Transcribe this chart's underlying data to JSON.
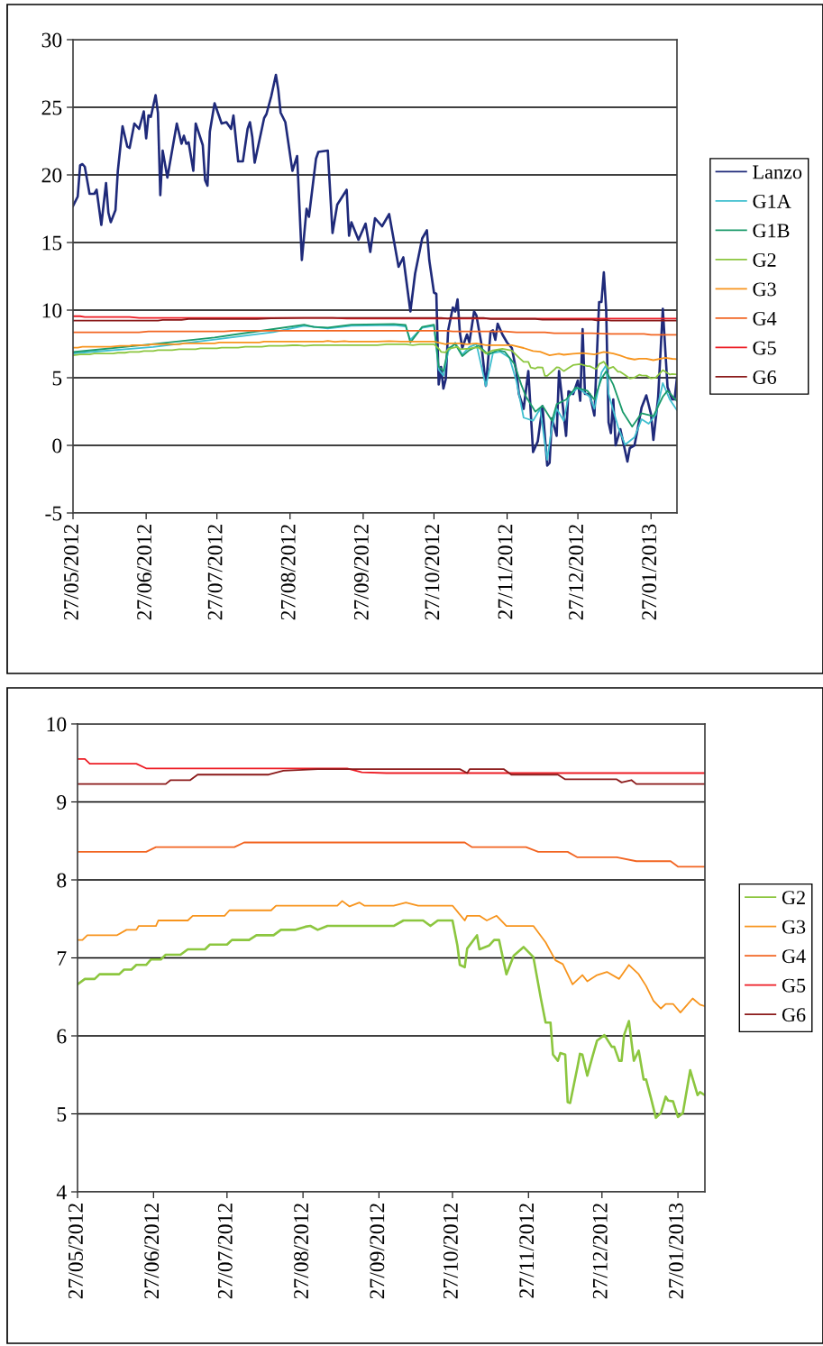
{
  "chart_data": [
    {
      "type": "line",
      "xlim": [
        "2012-05-27",
        "2013-02-07"
      ],
      "ylim": [
        -5,
        30
      ],
      "yticks": [
        -5,
        0,
        5,
        10,
        15,
        20,
        25,
        30
      ],
      "xticks": [
        {
          "value": "2012-05-27",
          "label": "27/05/2012"
        },
        {
          "value": "2012-06-27",
          "label": "27/06/2012"
        },
        {
          "value": "2012-07-27",
          "label": "27/07/2012"
        },
        {
          "value": "2012-08-27",
          "label": "27/08/2012"
        },
        {
          "value": "2012-09-27",
          "label": "27/09/2012"
        },
        {
          "value": "2012-10-27",
          "label": "27/10/2012"
        },
        {
          "value": "2012-11-27",
          "label": "27/11/2012"
        },
        {
          "value": "2012-12-27",
          "label": "27/12/2012"
        },
        {
          "value": "2013-01-27",
          "label": "27/01/2013"
        }
      ],
      "grid": "y",
      "legend": "right",
      "line_style": "solid",
      "marker": "none",
      "series": [
        {
          "name": "Lanzo",
          "color": "#1f2a7a",
          "x": [
            "2012-05-27",
            "2012-05-29",
            "2012-05-30",
            "2012-05-31",
            "2012-06-01",
            "2012-06-03",
            "2012-06-05",
            "2012-06-06",
            "2012-06-08",
            "2012-06-10",
            "2012-06-11",
            "2012-06-12",
            "2012-06-14",
            "2012-06-15",
            "2012-06-17",
            "2012-06-19",
            "2012-06-20",
            "2012-06-22",
            "2012-06-24",
            "2012-06-26",
            "2012-06-27",
            "2012-06-28",
            "2012-06-29",
            "2012-07-01",
            "2012-07-02",
            "2012-07-03",
            "2012-07-04",
            "2012-07-06",
            "2012-07-10",
            "2012-07-12",
            "2012-07-13",
            "2012-07-14",
            "2012-07-15",
            "2012-07-17",
            "2012-07-18",
            "2012-07-21",
            "2012-07-22",
            "2012-07-23",
            "2012-07-24",
            "2012-07-26",
            "2012-07-29",
            "2012-07-31",
            "2012-08-02",
            "2012-08-03",
            "2012-08-05",
            "2012-08-07",
            "2012-08-09",
            "2012-08-10",
            "2012-08-11",
            "2012-08-12",
            "2012-08-16",
            "2012-08-17",
            "2012-08-19",
            "2012-08-21",
            "2012-08-22",
            "2012-08-23",
            "2012-08-25",
            "2012-08-28",
            "2012-08-30",
            "2012-09-01",
            "2012-09-03",
            "2012-09-04",
            "2012-09-07",
            "2012-09-08",
            "2012-09-12",
            "2012-09-14",
            "2012-09-16",
            "2012-09-20",
            "2012-09-21",
            "2012-09-22",
            "2012-09-25",
            "2012-09-28",
            "2012-09-30",
            "2012-10-02",
            "2012-10-05",
            "2012-10-08",
            "2012-10-12",
            "2012-10-14",
            "2012-10-17",
            "2012-10-19",
            "2012-10-22",
            "2012-10-24",
            "2012-10-25",
            "2012-10-27",
            "2012-10-28",
            "2012-10-29",
            "2012-10-30",
            "2012-10-31",
            "2012-11-01",
            "2012-11-02",
            "2012-11-04",
            "2012-11-05",
            "2012-11-06",
            "2012-11-07",
            "2012-11-08",
            "2012-11-10",
            "2012-11-11",
            "2012-11-13",
            "2012-11-14",
            "2012-11-16",
            "2012-11-18",
            "2012-11-20",
            "2012-11-21",
            "2012-11-22",
            "2012-11-23",
            "2012-11-25",
            "2012-11-27",
            "2012-11-29",
            "2012-12-01",
            "2012-12-02",
            "2012-12-04",
            "2012-12-06",
            "2012-12-08",
            "2012-12-10",
            "2012-12-12",
            "2012-12-14",
            "2012-12-15",
            "2012-12-16",
            "2012-12-18",
            "2012-12-19",
            "2012-12-21",
            "2012-12-22",
            "2012-12-23",
            "2012-12-25",
            "2012-12-27",
            "2012-12-28",
            "2012-12-29",
            "2012-12-30",
            "2013-01-01",
            "2013-01-03",
            "2013-01-05",
            "2013-01-06",
            "2013-01-07",
            "2013-01-08",
            "2013-01-09",
            "2013-01-10",
            "2013-01-11",
            "2013-01-12",
            "2013-01-14",
            "2013-01-17",
            "2013-01-18",
            "2013-01-20",
            "2013-01-21",
            "2013-01-23",
            "2013-01-25",
            "2013-01-27",
            "2013-01-28",
            "2013-01-30",
            "2013-02-01",
            "2013-02-03",
            "2013-02-05",
            "2013-02-06",
            "2013-02-07"
          ],
          "values": [
            17.7,
            18.4,
            20.7,
            20.8,
            20.6,
            18.6,
            18.6,
            18.9,
            16.3,
            19.4,
            17.2,
            16.5,
            17.4,
            20.3,
            23.6,
            22.1,
            22.0,
            23.8,
            23.4,
            24.7,
            22.7,
            24.4,
            24.3,
            25.9,
            24.6,
            18.5,
            21.8,
            19.8,
            23.8,
            22.3,
            22.9,
            22.3,
            22.4,
            20.3,
            23.8,
            22.2,
            19.6,
            19.2,
            23.2,
            25.3,
            23.8,
            23.9,
            23.4,
            24.4,
            21.0,
            21.0,
            23.4,
            23.9,
            22.8,
            20.9,
            24.2,
            24.5,
            25.8,
            27.4,
            26.3,
            24.6,
            23.9,
            20.3,
            21.4,
            13.7,
            17.5,
            16.9,
            21.2,
            21.7,
            21.8,
            15.7,
            17.8,
            18.9,
            15.5,
            16.5,
            15.2,
            16.4,
            14.3,
            16.8,
            16.2,
            17.1,
            13.2,
            13.9,
            9.9,
            12.7,
            15.3,
            15.9,
            13.7,
            11.3,
            11.2,
            4.5,
            5.8,
            4.2,
            4.9,
            8.5,
            10.2,
            9.9,
            10.8,
            8.3,
            7.2,
            8.2,
            7.6,
            9.9,
            9.6,
            7.6,
            4.4,
            8.4,
            8.5,
            7.8,
            9.0,
            8.2,
            7.6,
            7.2,
            5.4,
            3.8,
            2.7,
            5.5,
            -0.5,
            0.3,
            2.9,
            -1.5,
            -1.3,
            2.0,
            0.7,
            5.5,
            2.3,
            0.7,
            4.0,
            3.8,
            4.8,
            3.3,
            8.6,
            3.8,
            3.8,
            2.2,
            10.6,
            10.6,
            12.8,
            10.0,
            1.7,
            0.9,
            3.4,
            0.0,
            1.2,
            -1.2,
            -0.2,
            0.0,
            0.9,
            2.8,
            3.7,
            2.3,
            0.4,
            3.5,
            10.1,
            4.3,
            3.4,
            3.4,
            5.0
          ]
        },
        {
          "name": "G1A",
          "color": "#3fbfcf",
          "x": [
            "2012-05-27",
            "2012-06-30",
            "2012-07-26",
            "2012-08-20",
            "2012-09-02",
            "2012-09-12",
            "2012-09-22",
            "2012-10-10",
            "2012-10-15",
            "2012-10-17",
            "2012-10-22",
            "2012-10-27",
            "2012-10-29",
            "2012-10-31",
            "2012-11-02",
            "2012-11-05",
            "2012-11-08",
            "2012-11-11",
            "2012-11-14",
            "2012-11-18",
            "2012-11-21",
            "2012-11-24",
            "2012-11-28",
            "2012-12-01",
            "2012-12-04",
            "2012-12-08",
            "2012-12-11",
            "2012-12-14",
            "2012-12-16",
            "2012-12-18",
            "2012-12-21",
            "2012-12-23",
            "2012-12-27",
            "2013-01-01",
            "2013-01-03",
            "2013-01-06",
            "2013-01-08",
            "2013-01-09",
            "2013-01-13",
            "2013-01-16",
            "2013-01-20",
            "2013-01-23",
            "2013-01-26",
            "2013-01-29",
            "2013-02-01",
            "2013-02-04",
            "2013-02-07"
          ],
          "values": [
            6.8,
            7.27,
            7.82,
            8.38,
            8.85,
            8.65,
            8.85,
            8.9,
            8.8,
            7.8,
            8.7,
            8.85,
            5.6,
            5.16,
            6.93,
            7.6,
            6.71,
            7.27,
            7.49,
            4.38,
            6.82,
            6.93,
            6.49,
            4.71,
            2.05,
            1.82,
            2.71,
            -1.07,
            1.38,
            2.71,
            1.82,
            3.6,
            4.27,
            3.6,
            2.71,
            5.38,
            5.93,
            3.82,
            1.38,
            0.05,
            0.6,
            1.93,
            1.6,
            2.27,
            4.6,
            3.38,
            2.6
          ]
        },
        {
          "name": "G1B",
          "color": "#1a9a6a",
          "x": [
            "2012-05-27",
            "2012-06-30",
            "2012-07-26",
            "2012-08-20",
            "2012-09-02",
            "2012-09-06",
            "2012-09-12",
            "2012-09-22",
            "2012-10-10",
            "2012-10-15",
            "2012-10-17",
            "2012-10-22",
            "2012-10-27",
            "2012-10-29",
            "2012-10-31",
            "2012-11-02",
            "2012-11-05",
            "2012-11-08",
            "2012-11-11",
            "2012-11-15",
            "2012-11-19",
            "2012-11-23",
            "2012-11-26",
            "2012-11-30",
            "2012-12-03",
            "2012-12-05",
            "2012-12-09",
            "2012-12-12",
            "2012-12-16",
            "2012-12-18",
            "2012-12-22",
            "2012-12-26",
            "2012-12-31",
            "2013-01-03",
            "2013-01-06",
            "2013-01-08",
            "2013-01-11",
            "2013-01-15",
            "2013-01-19",
            "2013-01-23",
            "2013-01-28",
            "2013-02-01",
            "2013-02-03",
            "2013-02-07"
          ],
          "values": [
            6.9,
            7.49,
            7.98,
            8.6,
            8.93,
            8.76,
            8.71,
            8.93,
            8.98,
            8.9,
            7.6,
            8.76,
            8.93,
            5.82,
            5.49,
            7.16,
            7.49,
            6.6,
            7.04,
            7.38,
            6.71,
            7.04,
            6.93,
            6.04,
            4.49,
            3.6,
            2.49,
            2.93,
            1.82,
            3.04,
            3.38,
            4.27,
            4.04,
            3.38,
            4.93,
            5.49,
            4.49,
            2.49,
            1.38,
            2.38,
            2.16,
            3.6,
            4.04,
            3.27
          ]
        },
        {
          "name": "G2",
          "color": "#8cc63f",
          "x": [
            "2012-05-27",
            "2012-05-30",
            "2012-06-03",
            "2012-06-05",
            "2012-06-13",
            "2012-06-15",
            "2012-06-18",
            "2012-06-20",
            "2012-06-24",
            "2012-06-26",
            "2012-06-30",
            "2012-07-02",
            "2012-07-08",
            "2012-07-11",
            "2012-07-18",
            "2012-07-20",
            "2012-07-27",
            "2012-07-29",
            "2012-08-05",
            "2012-08-08",
            "2012-08-15",
            "2012-08-18",
            "2012-08-24",
            "2012-08-28",
            "2012-08-30",
            "2012-09-02",
            "2012-09-06",
            "2012-10-03",
            "2012-10-07",
            "2012-10-15",
            "2012-10-18",
            "2012-10-21",
            "2012-10-27",
            "2012-10-29",
            "2012-10-30",
            "2012-11-01",
            "2012-11-02",
            "2012-11-06",
            "2012-11-07",
            "2012-11-11",
            "2012-11-13",
            "2012-11-15",
            "2012-11-18",
            "2012-11-21",
            "2012-11-25",
            "2012-11-29",
            "2012-12-02",
            "2012-12-04",
            "2012-12-06",
            "2012-12-07",
            "2012-12-09",
            "2012-12-10",
            "2012-12-12",
            "2012-12-13",
            "2012-12-14",
            "2012-12-17",
            "2012-12-18",
            "2012-12-19",
            "2012-12-21",
            "2012-12-23",
            "2012-12-25",
            "2012-12-28",
            "2012-12-31",
            "2013-01-01",
            "2013-01-03",
            "2013-01-04",
            "2013-01-05",
            "2013-01-07",
            "2013-01-09",
            "2013-01-11",
            "2013-01-13",
            "2013-01-14",
            "2013-01-16",
            "2013-01-18",
            "2013-01-20",
            "2013-01-22",
            "2013-01-23",
            "2013-01-25",
            "2013-01-27",
            "2013-01-29",
            "2013-02-01",
            "2013-02-04",
            "2013-02-05",
            "2013-02-07"
          ],
          "values": [
            6.66,
            6.73,
            6.73,
            6.79,
            6.79,
            6.85,
            6.85,
            6.91,
            6.91,
            6.98,
            6.98,
            7.04,
            7.04,
            7.11,
            7.11,
            7.17,
            7.17,
            7.23,
            7.23,
            7.29,
            7.29,
            7.36,
            7.36,
            7.4,
            7.41,
            7.36,
            7.41,
            7.41,
            7.48,
            7.48,
            7.41,
            7.48,
            7.48,
            7.16,
            6.91,
            6.88,
            7.12,
            7.29,
            7.11,
            7.16,
            7.23,
            7.23,
            6.79,
            7.03,
            7.14,
            7.01,
            6.49,
            6.17,
            6.17,
            5.76,
            5.68,
            5.78,
            5.76,
            5.15,
            5.14,
            5.6,
            5.77,
            5.76,
            5.49,
            5.72,
            5.94,
            6.01,
            5.86,
            5.86,
            5.68,
            5.68,
            6.01,
            6.19,
            5.68,
            5.81,
            5.44,
            5.44,
            5.2,
            4.95,
            5.01,
            5.22,
            5.17,
            5.16,
            4.96,
            5.01,
            5.56,
            5.24,
            5.28,
            5.24
          ]
        },
        {
          "name": "G3",
          "color": "#f7941d",
          "x": [
            "2012-05-27",
            "2012-05-29",
            "2012-05-31",
            "2012-06-12",
            "2012-06-16",
            "2012-06-20",
            "2012-06-21",
            "2012-06-28",
            "2012-06-29",
            "2012-07-11",
            "2012-07-13",
            "2012-07-26",
            "2012-07-28",
            "2012-08-14",
            "2012-08-16",
            "2012-09-10",
            "2012-09-12",
            "2012-09-15",
            "2012-09-19",
            "2012-09-21",
            "2012-10-03",
            "2012-10-08",
            "2012-10-13",
            "2012-10-27",
            "2012-11-01",
            "2012-11-02",
            "2012-11-07",
            "2012-11-10",
            "2012-11-14",
            "2012-11-18",
            "2012-11-29",
            "2012-12-04",
            "2012-12-08",
            "2012-12-11",
            "2012-12-15",
            "2012-12-19",
            "2012-12-21",
            "2012-12-25",
            "2012-12-29",
            "2013-01-03",
            "2013-01-07",
            "2013-01-11",
            "2013-01-14",
            "2013-01-17",
            "2013-01-20",
            "2013-01-22",
            "2013-01-25",
            "2013-01-28",
            "2013-02-02",
            "2013-02-05",
            "2013-02-07"
          ],
          "values": [
            7.23,
            7.23,
            7.29,
            7.29,
            7.36,
            7.36,
            7.41,
            7.41,
            7.48,
            7.48,
            7.54,
            7.54,
            7.61,
            7.61,
            7.67,
            7.67,
            7.73,
            7.66,
            7.71,
            7.67,
            7.67,
            7.71,
            7.67,
            7.67,
            7.48,
            7.54,
            7.54,
            7.48,
            7.54,
            7.41,
            7.41,
            7.2,
            6.97,
            6.92,
            6.66,
            6.78,
            6.7,
            6.78,
            6.82,
            6.73,
            6.91,
            6.79,
            6.64,
            6.45,
            6.35,
            6.41,
            6.41,
            6.3,
            6.48,
            6.4,
            6.38
          ]
        },
        {
          "name": "G4",
          "color": "#f26522",
          "x": [
            "2012-05-27",
            "2012-06-24",
            "2012-06-28",
            "2012-07-30",
            "2012-08-03",
            "2012-11-01",
            "2012-11-04",
            "2012-11-26",
            "2012-12-01",
            "2012-12-13",
            "2012-12-17",
            "2013-01-02",
            "2013-01-10",
            "2013-01-24",
            "2013-01-27",
            "2013-02-07"
          ],
          "values": [
            8.36,
            8.36,
            8.42,
            8.42,
            8.48,
            8.48,
            8.42,
            8.42,
            8.36,
            8.36,
            8.29,
            8.29,
            8.24,
            8.24,
            8.17,
            8.17
          ]
        },
        {
          "name": "G5",
          "color": "#ed1c24",
          "x": [
            "2012-05-27",
            "2012-05-30",
            "2012-06-01",
            "2012-06-20",
            "2012-06-24",
            "2012-09-14",
            "2012-09-20",
            "2012-09-30",
            "2013-02-07"
          ],
          "values": [
            9.55,
            9.55,
            9.49,
            9.49,
            9.43,
            9.43,
            9.38,
            9.37,
            9.37
          ]
        },
        {
          "name": "G6",
          "color": "#8b1a1a",
          "x": [
            "2012-05-27",
            "2012-07-02",
            "2012-07-04",
            "2012-07-12",
            "2012-07-15",
            "2012-08-13",
            "2012-08-19",
            "2012-09-02",
            "2012-10-30",
            "2012-11-02",
            "2012-11-03",
            "2012-11-17",
            "2012-11-20",
            "2012-12-09",
            "2012-12-12",
            "2013-01-02",
            "2013-01-04",
            "2013-01-08",
            "2013-01-10",
            "2013-02-07"
          ],
          "values": [
            9.23,
            9.23,
            9.28,
            9.28,
            9.35,
            9.35,
            9.4,
            9.42,
            9.42,
            9.37,
            9.42,
            9.42,
            9.35,
            9.35,
            9.29,
            9.29,
            9.25,
            9.28,
            9.23,
            9.23
          ]
        }
      ]
    },
    {
      "type": "line",
      "xlim": [
        "2012-05-27",
        "2013-02-07"
      ],
      "ylim": [
        4,
        10
      ],
      "yticks": [
        4,
        5,
        6,
        7,
        8,
        9,
        10
      ],
      "xticks": [
        {
          "value": "2012-05-27",
          "label": "27/05/2012"
        },
        {
          "value": "2012-06-27",
          "label": "27/06/2012"
        },
        {
          "value": "2012-07-27",
          "label": "27/07/2012"
        },
        {
          "value": "2012-08-27",
          "label": "27/08/2012"
        },
        {
          "value": "2012-09-27",
          "label": "27/09/2012"
        },
        {
          "value": "2012-10-27",
          "label": "27/10/2012"
        },
        {
          "value": "2012-11-27",
          "label": "27/11/2012"
        },
        {
          "value": "2012-12-27",
          "label": "27/12/2012"
        },
        {
          "value": "2013-01-27",
          "label": "27/01/2013"
        }
      ],
      "grid": "y",
      "legend": "right",
      "line_style": "solid",
      "marker": "none",
      "series": [
        {
          "name": "G2",
          "color": "#8cc63f",
          "x": [
            "2012-05-27",
            "2012-05-30",
            "2012-06-03",
            "2012-06-05",
            "2012-06-13",
            "2012-06-15",
            "2012-06-18",
            "2012-06-20",
            "2012-06-24",
            "2012-06-26",
            "2012-06-30",
            "2012-07-02",
            "2012-07-08",
            "2012-07-11",
            "2012-07-18",
            "2012-07-20",
            "2012-07-27",
            "2012-07-29",
            "2012-08-05",
            "2012-08-08",
            "2012-08-15",
            "2012-08-18",
            "2012-08-24",
            "2012-08-28",
            "2012-08-30",
            "2012-09-02",
            "2012-09-06",
            "2012-10-03",
            "2012-10-07",
            "2012-10-15",
            "2012-10-18",
            "2012-10-21",
            "2012-10-27",
            "2012-10-29",
            "2012-10-30",
            "2012-11-01",
            "2012-11-02",
            "2012-11-06",
            "2012-11-07",
            "2012-11-11",
            "2012-11-13",
            "2012-11-15",
            "2012-11-18",
            "2012-11-21",
            "2012-11-25",
            "2012-11-29",
            "2012-12-02",
            "2012-12-04",
            "2012-12-06",
            "2012-12-07",
            "2012-12-09",
            "2012-12-10",
            "2012-12-12",
            "2012-12-13",
            "2012-12-14",
            "2012-12-17",
            "2012-12-18",
            "2012-12-19",
            "2012-12-21",
            "2012-12-23",
            "2012-12-25",
            "2012-12-28",
            "2012-12-31",
            "2013-01-01",
            "2013-01-03",
            "2013-01-04",
            "2013-01-05",
            "2013-01-07",
            "2013-01-09",
            "2013-01-11",
            "2013-01-13",
            "2013-01-14",
            "2013-01-16",
            "2013-01-18",
            "2013-01-20",
            "2013-01-22",
            "2013-01-23",
            "2013-01-25",
            "2013-01-27",
            "2013-01-29",
            "2013-02-01",
            "2013-02-04",
            "2013-02-05",
            "2013-02-07"
          ],
          "values": [
            6.66,
            6.73,
            6.73,
            6.79,
            6.79,
            6.85,
            6.85,
            6.91,
            6.91,
            6.98,
            6.98,
            7.04,
            7.04,
            7.11,
            7.11,
            7.17,
            7.17,
            7.23,
            7.23,
            7.29,
            7.29,
            7.36,
            7.36,
            7.4,
            7.41,
            7.36,
            7.41,
            7.41,
            7.48,
            7.48,
            7.41,
            7.48,
            7.48,
            7.16,
            6.91,
            6.88,
            7.12,
            7.29,
            7.11,
            7.16,
            7.23,
            7.23,
            6.79,
            7.03,
            7.14,
            7.01,
            6.49,
            6.17,
            6.17,
            5.76,
            5.68,
            5.78,
            5.76,
            5.15,
            5.14,
            5.6,
            5.77,
            5.76,
            5.49,
            5.72,
            5.94,
            6.01,
            5.86,
            5.86,
            5.68,
            5.68,
            6.01,
            6.19,
            5.68,
            5.81,
            5.44,
            5.44,
            5.2,
            4.95,
            5.01,
            5.22,
            5.17,
            5.16,
            4.96,
            5.01,
            5.56,
            5.24,
            5.28,
            5.24
          ]
        },
        {
          "name": "G3",
          "color": "#f7941d",
          "x": [
            "2012-05-27",
            "2012-05-29",
            "2012-05-31",
            "2012-06-12",
            "2012-06-16",
            "2012-06-20",
            "2012-06-21",
            "2012-06-28",
            "2012-06-29",
            "2012-07-11",
            "2012-07-13",
            "2012-07-26",
            "2012-07-28",
            "2012-08-14",
            "2012-08-16",
            "2012-09-10",
            "2012-09-12",
            "2012-09-15",
            "2012-09-19",
            "2012-09-21",
            "2012-10-03",
            "2012-10-08",
            "2012-10-13",
            "2012-10-27",
            "2012-11-01",
            "2012-11-02",
            "2012-11-07",
            "2012-11-10",
            "2012-11-14",
            "2012-11-18",
            "2012-11-29",
            "2012-12-04",
            "2012-12-08",
            "2012-12-11",
            "2012-12-15",
            "2012-12-19",
            "2012-12-21",
            "2012-12-25",
            "2012-12-29",
            "2013-01-03",
            "2013-01-07",
            "2013-01-11",
            "2013-01-14",
            "2013-01-17",
            "2013-01-20",
            "2013-01-22",
            "2013-01-25",
            "2013-01-28",
            "2013-02-02",
            "2013-02-05",
            "2013-02-07"
          ],
          "values": [
            7.23,
            7.23,
            7.29,
            7.29,
            7.36,
            7.36,
            7.41,
            7.41,
            7.48,
            7.48,
            7.54,
            7.54,
            7.61,
            7.61,
            7.67,
            7.67,
            7.73,
            7.66,
            7.71,
            7.67,
            7.67,
            7.71,
            7.67,
            7.67,
            7.48,
            7.54,
            7.54,
            7.48,
            7.54,
            7.41,
            7.41,
            7.2,
            6.97,
            6.92,
            6.66,
            6.78,
            6.7,
            6.78,
            6.82,
            6.73,
            6.91,
            6.79,
            6.64,
            6.45,
            6.35,
            6.41,
            6.41,
            6.3,
            6.48,
            6.4,
            6.38
          ]
        },
        {
          "name": "G4",
          "color": "#f26522",
          "x": [
            "2012-05-27",
            "2012-06-24",
            "2012-06-28",
            "2012-07-30",
            "2012-08-03",
            "2012-11-01",
            "2012-11-04",
            "2012-11-26",
            "2012-12-01",
            "2012-12-13",
            "2012-12-17",
            "2013-01-02",
            "2013-01-10",
            "2013-01-24",
            "2013-01-27",
            "2013-02-07"
          ],
          "values": [
            8.36,
            8.36,
            8.42,
            8.42,
            8.48,
            8.48,
            8.42,
            8.42,
            8.36,
            8.36,
            8.29,
            8.29,
            8.24,
            8.24,
            8.17,
            8.17
          ]
        },
        {
          "name": "G5",
          "color": "#ed1c24",
          "x": [
            "2012-05-27",
            "2012-05-30",
            "2012-06-01",
            "2012-06-20",
            "2012-06-24",
            "2012-09-14",
            "2012-09-20",
            "2012-09-30",
            "2013-02-07"
          ],
          "values": [
            9.55,
            9.55,
            9.49,
            9.49,
            9.43,
            9.43,
            9.38,
            9.37,
            9.37
          ]
        },
        {
          "name": "G6",
          "color": "#8b1a1a",
          "x": [
            "2012-05-27",
            "2012-07-02",
            "2012-07-04",
            "2012-07-12",
            "2012-07-15",
            "2012-08-13",
            "2012-08-19",
            "2012-09-02",
            "2012-10-30",
            "2012-11-02",
            "2012-11-03",
            "2012-11-17",
            "2012-11-20",
            "2012-12-09",
            "2012-12-12",
            "2013-01-02",
            "2013-01-04",
            "2013-01-08",
            "2013-01-10",
            "2013-02-07"
          ],
          "values": [
            9.23,
            9.23,
            9.28,
            9.28,
            9.35,
            9.35,
            9.4,
            9.42,
            9.42,
            9.37,
            9.42,
            9.42,
            9.35,
            9.35,
            9.29,
            9.29,
            9.25,
            9.28,
            9.23,
            9.23
          ]
        }
      ]
    }
  ]
}
